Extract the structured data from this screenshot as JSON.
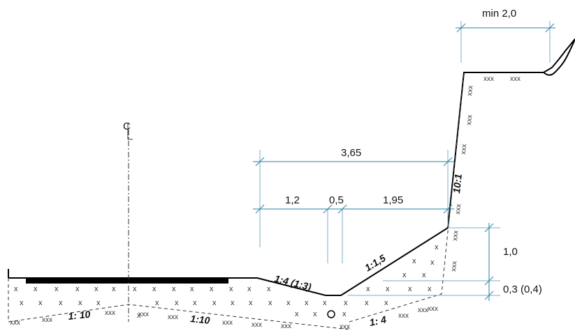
{
  "dimensions": {
    "top_width": "min 2,0",
    "total_width": "3,65",
    "part_a": "1,2",
    "part_b": "0,5",
    "part_c": "1,95",
    "height_a": "1,0",
    "height_b": "0,3 (0,4)"
  },
  "slopes": {
    "road_side": "1:4 (1:3)",
    "ditch_slope": "1:1,5",
    "cut_face": "10:1",
    "base_left": "1: 10",
    "base_mid": "1:10",
    "base_right": "1: 4"
  },
  "centerline_label": "C",
  "fill_marks": {
    "single": "x",
    "triple": "xxx"
  }
}
